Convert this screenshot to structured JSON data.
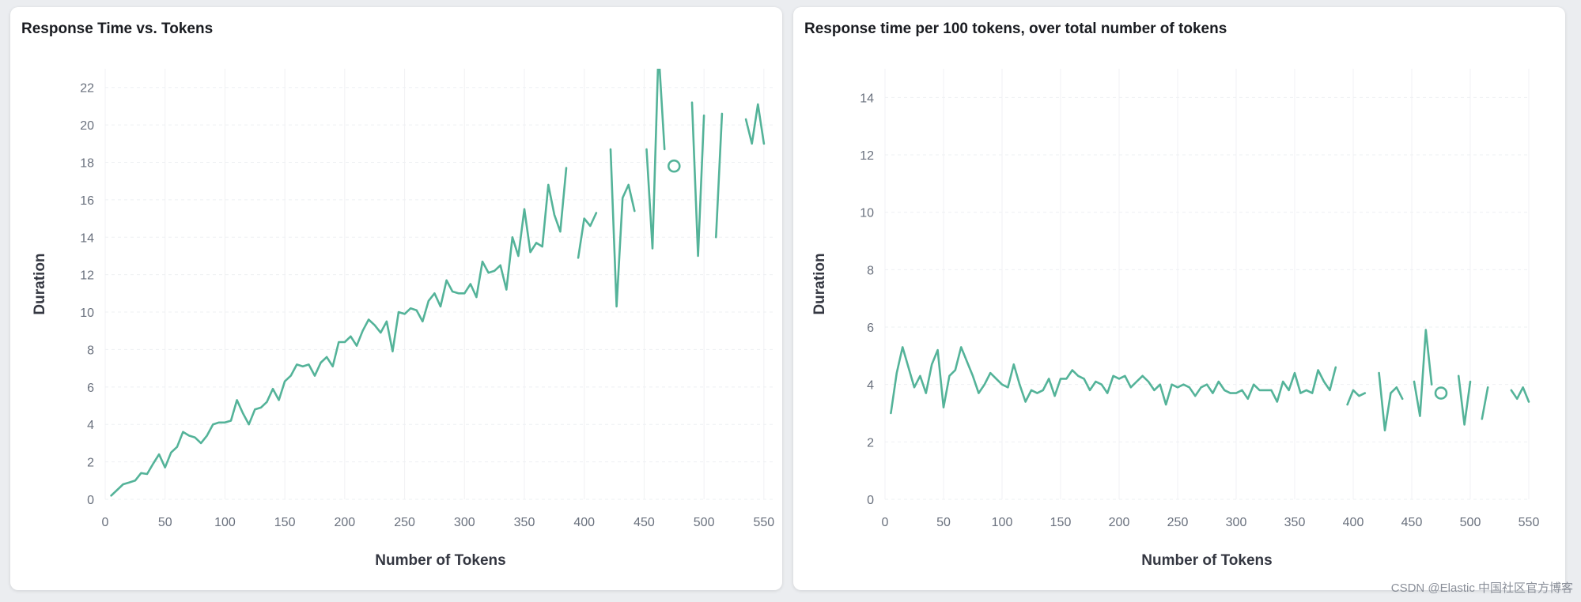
{
  "watermark": "CSDN @Elastic 中国社区官方博客",
  "colors": {
    "series": "#54b399",
    "tick": "#69707d",
    "title": "#1a1c21"
  },
  "chart_data": [
    {
      "type": "line",
      "title": "Response Time vs. Tokens",
      "xlabel": "Number of Tokens",
      "ylabel": "Duration",
      "xlim": [
        0,
        560
      ],
      "ylim": [
        0,
        23
      ],
      "xticks": [
        0,
        50,
        100,
        150,
        200,
        250,
        300,
        350,
        400,
        450,
        500,
        550
      ],
      "yticks": [
        0,
        2,
        4,
        6,
        8,
        10,
        12,
        14,
        16,
        18,
        20,
        22
      ],
      "grid": true,
      "series": [
        {
          "segments": [
            [
              [
                5,
                0.2
              ],
              [
                15,
                0.8
              ],
              [
                20,
                0.9
              ],
              [
                25,
                1.0
              ],
              [
                30,
                1.4
              ],
              [
                35,
                1.35
              ],
              [
                40,
                1.9
              ],
              [
                45,
                2.4
              ],
              [
                50,
                1.7
              ],
              [
                55,
                2.5
              ],
              [
                60,
                2.8
              ],
              [
                65,
                3.6
              ],
              [
                70,
                3.4
              ],
              [
                75,
                3.3
              ],
              [
                80,
                3.0
              ],
              [
                85,
                3.4
              ],
              [
                90,
                4.0
              ],
              [
                95,
                4.1
              ],
              [
                100,
                4.1
              ],
              [
                105,
                4.2
              ],
              [
                110,
                5.3
              ],
              [
                115,
                4.6
              ],
              [
                120,
                4.0
              ],
              [
                125,
                4.8
              ],
              [
                130,
                4.9
              ],
              [
                135,
                5.2
              ],
              [
                140,
                5.9
              ],
              [
                145,
                5.3
              ],
              [
                150,
                6.3
              ],
              [
                155,
                6.6
              ],
              [
                160,
                7.2
              ],
              [
                165,
                7.1
              ],
              [
                170,
                7.2
              ],
              [
                175,
                6.6
              ],
              [
                180,
                7.3
              ],
              [
                185,
                7.6
              ],
              [
                190,
                7.1
              ],
              [
                195,
                8.4
              ],
              [
                200,
                8.4
              ],
              [
                205,
                8.7
              ],
              [
                210,
                8.2
              ],
              [
                215,
                9.0
              ],
              [
                220,
                9.6
              ],
              [
                225,
                9.3
              ],
              [
                230,
                8.9
              ],
              [
                235,
                9.5
              ],
              [
                240,
                7.9
              ],
              [
                245,
                10.0
              ],
              [
                250,
                9.9
              ],
              [
                255,
                10.2
              ],
              [
                260,
                10.1
              ],
              [
                265,
                9.5
              ],
              [
                270,
                10.6
              ],
              [
                275,
                11.0
              ],
              [
                280,
                10.3
              ],
              [
                285,
                11.7
              ],
              [
                290,
                11.1
              ],
              [
                295,
                11.0
              ],
              [
                300,
                11.0
              ],
              [
                305,
                11.5
              ],
              [
                310,
                10.8
              ],
              [
                315,
                12.7
              ],
              [
                320,
                12.1
              ],
              [
                325,
                12.2
              ],
              [
                330,
                12.5
              ],
              [
                335,
                11.2
              ],
              [
                340,
                14.0
              ],
              [
                345,
                13.0
              ],
              [
                350,
                15.5
              ],
              [
                355,
                13.2
              ],
              [
                360,
                13.7
              ],
              [
                365,
                13.5
              ],
              [
                370,
                16.8
              ],
              [
                375,
                15.2
              ],
              [
                380,
                14.3
              ],
              [
                385,
                17.7
              ]
            ],
            [
              [
                395,
                12.9
              ],
              [
                400,
                15.0
              ],
              [
                405,
                14.6
              ],
              [
                410,
                15.3
              ]
            ],
            [
              [
                422,
                18.7
              ],
              [
                427,
                10.3
              ],
              [
                432,
                16.1
              ],
              [
                437,
                16.8
              ],
              [
                442,
                15.4
              ]
            ],
            [
              [
                452,
                18.7
              ],
              [
                457,
                13.4
              ],
              [
                462,
                24.0
              ],
              [
                467,
                18.7
              ]
            ],
            [
              [
                490,
                21.2
              ],
              [
                495,
                13.0
              ],
              [
                500,
                20.5
              ]
            ],
            [
              [
                510,
                14.0
              ],
              [
                515,
                20.6
              ]
            ],
            [
              [
                535,
                20.3
              ],
              [
                540,
                19.0
              ],
              [
                545,
                21.1
              ],
              [
                550,
                19.0
              ]
            ]
          ],
          "points": [
            [
              475,
              17.8
            ]
          ]
        }
      ]
    },
    {
      "type": "line",
      "title": "Response time per 100 tokens, over total number of tokens",
      "xlabel": "Number of Tokens",
      "ylabel": "Duration",
      "xlim": [
        0,
        550
      ],
      "ylim": [
        0,
        15
      ],
      "xticks": [
        0,
        50,
        100,
        150,
        200,
        250,
        300,
        350,
        400,
        450,
        500,
        550
      ],
      "yticks": [
        0,
        2,
        4,
        6,
        8,
        10,
        12,
        14
      ],
      "grid": true,
      "series": [
        {
          "segments": [
            [
              [
                5,
                3.0
              ],
              [
                10,
                4.4
              ],
              [
                15,
                5.3
              ],
              [
                20,
                4.6
              ],
              [
                25,
                3.9
              ],
              [
                30,
                4.3
              ],
              [
                35,
                3.7
              ],
              [
                40,
                4.7
              ],
              [
                45,
                5.2
              ],
              [
                50,
                3.2
              ],
              [
                55,
                4.3
              ],
              [
                60,
                4.5
              ],
              [
                65,
                5.3
              ],
              [
                70,
                4.8
              ],
              [
                75,
                4.3
              ],
              [
                80,
                3.7
              ],
              [
                85,
                4.0
              ],
              [
                90,
                4.4
              ],
              [
                95,
                4.2
              ],
              [
                100,
                4.0
              ],
              [
                105,
                3.9
              ],
              [
                110,
                4.7
              ],
              [
                115,
                4.0
              ],
              [
                120,
                3.4
              ],
              [
                125,
                3.8
              ],
              [
                130,
                3.7
              ],
              [
                135,
                3.8
              ],
              [
                140,
                4.2
              ],
              [
                145,
                3.6
              ],
              [
                150,
                4.2
              ],
              [
                155,
                4.2
              ],
              [
                160,
                4.5
              ],
              [
                165,
                4.3
              ],
              [
                170,
                4.2
              ],
              [
                175,
                3.8
              ],
              [
                180,
                4.1
              ],
              [
                185,
                4.0
              ],
              [
                190,
                3.7
              ],
              [
                195,
                4.3
              ],
              [
                200,
                4.2
              ],
              [
                205,
                4.3
              ],
              [
                210,
                3.9
              ],
              [
                215,
                4.1
              ],
              [
                220,
                4.3
              ],
              [
                225,
                4.1
              ],
              [
                230,
                3.8
              ],
              [
                235,
                4.0
              ],
              [
                240,
                3.3
              ],
              [
                245,
                4.0
              ],
              [
                250,
                3.9
              ],
              [
                255,
                4.0
              ],
              [
                260,
                3.9
              ],
              [
                265,
                3.6
              ],
              [
                270,
                3.9
              ],
              [
                275,
                4.0
              ],
              [
                280,
                3.7
              ],
              [
                285,
                4.1
              ],
              [
                290,
                3.8
              ],
              [
                295,
                3.7
              ],
              [
                300,
                3.7
              ],
              [
                305,
                3.8
              ],
              [
                310,
                3.5
              ],
              [
                315,
                4.0
              ],
              [
                320,
                3.8
              ],
              [
                325,
                3.8
              ],
              [
                330,
                3.8
              ],
              [
                335,
                3.4
              ],
              [
                340,
                4.1
              ],
              [
                345,
                3.8
              ],
              [
                350,
                4.4
              ],
              [
                355,
                3.7
              ],
              [
                360,
                3.8
              ],
              [
                365,
                3.7
              ],
              [
                370,
                4.5
              ],
              [
                375,
                4.1
              ],
              [
                380,
                3.8
              ],
              [
                385,
                4.6
              ]
            ],
            [
              [
                395,
                3.3
              ],
              [
                400,
                3.8
              ],
              [
                405,
                3.6
              ],
              [
                410,
                3.7
              ]
            ],
            [
              [
                422,
                4.4
              ],
              [
                427,
                2.4
              ],
              [
                432,
                3.7
              ],
              [
                437,
                3.9
              ],
              [
                442,
                3.5
              ]
            ],
            [
              [
                452,
                4.1
              ],
              [
                457,
                2.9
              ],
              [
                462,
                5.9
              ],
              [
                467,
                4.0
              ]
            ],
            [
              [
                490,
                4.3
              ],
              [
                495,
                2.6
              ],
              [
                500,
                4.1
              ]
            ],
            [
              [
                510,
                2.8
              ],
              [
                515,
                3.9
              ]
            ],
            [
              [
                535,
                3.8
              ],
              [
                540,
                3.5
              ],
              [
                545,
                3.9
              ],
              [
                550,
                3.4
              ]
            ]
          ],
          "points": [
            [
              475,
              3.7
            ]
          ]
        }
      ]
    }
  ]
}
